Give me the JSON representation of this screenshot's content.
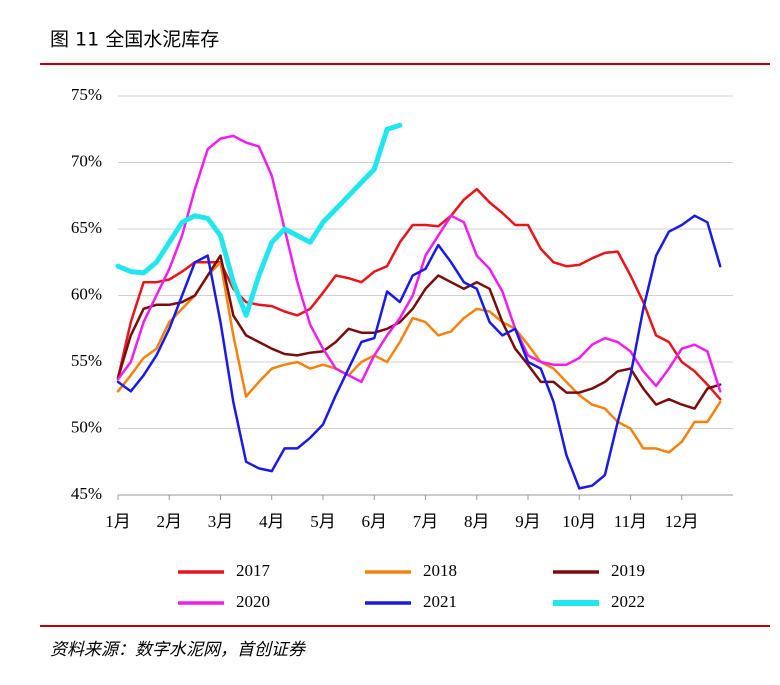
{
  "chart_data": {
    "type": "line",
    "title": "图 11  全国水泥库存",
    "source": "资料来源：数字水泥网，首创证券",
    "x": [
      1,
      1.25,
      1.5,
      1.75,
      2,
      2.25,
      2.5,
      2.75,
      3,
      3.25,
      3.5,
      3.75,
      4,
      4.25,
      4.5,
      4.75,
      5,
      5.25,
      5.5,
      5.75,
      6,
      6.25,
      6.5,
      6.75,
      7,
      7.25,
      7.5,
      7.75,
      8,
      8.25,
      8.5,
      8.75,
      9,
      9.25,
      9.5,
      9.75,
      10,
      10.25,
      10.5,
      10.75,
      11,
      11.25,
      11.5,
      11.75,
      12,
      12.25,
      12.5,
      12.75
    ],
    "xlim": [
      1,
      13
    ],
    "xticks": [
      {
        "value": 1,
        "label": "1月"
      },
      {
        "value": 2,
        "label": "2月"
      },
      {
        "value": 3,
        "label": "3月"
      },
      {
        "value": 4,
        "label": "4月"
      },
      {
        "value": 5,
        "label": "5月"
      },
      {
        "value": 6,
        "label": "6月"
      },
      {
        "value": 7,
        "label": "7月"
      },
      {
        "value": 8,
        "label": "8月"
      },
      {
        "value": 9,
        "label": "9月"
      },
      {
        "value": 10,
        "label": "10月"
      },
      {
        "value": 11,
        "label": "11月"
      },
      {
        "value": 12,
        "label": "12月"
      }
    ],
    "ylim": [
      45,
      75
    ],
    "yticks": [
      {
        "value": 45,
        "label": "45%"
      },
      {
        "value": 50,
        "label": "50%"
      },
      {
        "value": 55,
        "label": "55%"
      },
      {
        "value": 60,
        "label": "60%"
      },
      {
        "value": 65,
        "label": "65%"
      },
      {
        "value": 70,
        "label": "70%"
      },
      {
        "value": 75,
        "label": "75%"
      }
    ],
    "grid": true,
    "legend": "bottom",
    "series": [
      {
        "name": "2017",
        "color": "#e8141a",
        "width": 2.5,
        "values": [
          53.8,
          58,
          61,
          61,
          61.2,
          61.8,
          62.5,
          62.5,
          62.5,
          60.5,
          59.5,
          59.3,
          59.2,
          58.8,
          58.5,
          59,
          60.2,
          61.5,
          61.3,
          61,
          61.8,
          62.2,
          64,
          65.3,
          65.3,
          65.2,
          66,
          67.2,
          68,
          67,
          66.2,
          65.3,
          65.3,
          63.5,
          62.5,
          62.2,
          62.3,
          62.8,
          63.2,
          63.3,
          61.5,
          59.5,
          57,
          56.5,
          55,
          54.3,
          53.3,
          52.2
        ]
      },
      {
        "name": "2018",
        "color": "#f5820f",
        "width": 2.5,
        "values": [
          52.8,
          54,
          55.3,
          56,
          58,
          59,
          60,
          61.5,
          62.5,
          57,
          52.4,
          53.5,
          54.5,
          54.8,
          55,
          54.5,
          54.8,
          54.5,
          54,
          55,
          55.5,
          55,
          56.5,
          58.3,
          58,
          57,
          57.3,
          58.3,
          59,
          58.8,
          58,
          57.5,
          56.3,
          55,
          54.5,
          53.5,
          52.5,
          51.8,
          51.5,
          50.5,
          50,
          48.5,
          48.5,
          48.2,
          49,
          50.5,
          50.5,
          52
        ]
      },
      {
        "name": "2019",
        "color": "#7b0c0c",
        "width": 2.5,
        "values": [
          53.8,
          57,
          59,
          59.3,
          59.3,
          59.5,
          60,
          61.5,
          63,
          58.5,
          57,
          56.5,
          56,
          55.6,
          55.5,
          55.7,
          55.8,
          56.5,
          57.5,
          57.2,
          57.2,
          57.5,
          58,
          59,
          60.5,
          61.5,
          61,
          60.5,
          61,
          60.5,
          58,
          56,
          54.8,
          53.5,
          53.5,
          52.7,
          52.7,
          53,
          53.5,
          54.3,
          54.5,
          53,
          51.8,
          52.2,
          51.8,
          51.5,
          53,
          53.3
        ]
      },
      {
        "name": "2020",
        "color": "#ee1eee",
        "width": 2.5,
        "values": [
          53.7,
          55,
          58,
          60,
          62,
          64.5,
          68,
          71,
          71.8,
          72,
          71.5,
          71.2,
          69,
          65,
          61,
          57.8,
          56,
          54.5,
          54,
          53.5,
          55.5,
          57,
          58.3,
          60,
          63,
          64.5,
          66,
          65.5,
          63,
          62,
          60.3,
          57.5,
          55.5,
          55,
          54.8,
          54.8,
          55.3,
          56.3,
          56.8,
          56.5,
          55.8,
          54.3,
          53.2,
          54.5,
          56,
          56.3,
          55.8,
          52.8
        ]
      },
      {
        "name": "2021",
        "color": "#1a1ae6",
        "width": 2.5,
        "values": [
          53.5,
          52.8,
          54,
          55.5,
          57.5,
          60,
          62.5,
          63,
          58,
          52,
          47.5,
          47,
          46.8,
          48.5,
          48.5,
          49.3,
          50.3,
          52.5,
          54.5,
          56.5,
          56.8,
          60.3,
          59.5,
          61.5,
          62,
          63.8,
          62.5,
          61,
          60.5,
          58,
          57,
          57.5,
          55,
          54.5,
          52,
          48,
          45.5,
          45.7,
          46.5,
          50.5,
          54,
          59,
          63,
          64.8,
          65.3,
          66,
          65.5,
          62.2
        ]
      },
      {
        "name": "2022",
        "color": "#22e6ee",
        "width": 5,
        "values": [
          62.2,
          61.8,
          61.7,
          62.5,
          64,
          65.5,
          66,
          65.8,
          64.5,
          61,
          58.5,
          61.5,
          64,
          65,
          64.5,
          64,
          65.5,
          66.5,
          67.5,
          68.5,
          69.5,
          72.5,
          72.8,
          null,
          null,
          null,
          null,
          null,
          null,
          null,
          null,
          null,
          null,
          null,
          null,
          null,
          null,
          null,
          null,
          null,
          null,
          null,
          null,
          null,
          null,
          null,
          null,
          null
        ]
      }
    ]
  }
}
